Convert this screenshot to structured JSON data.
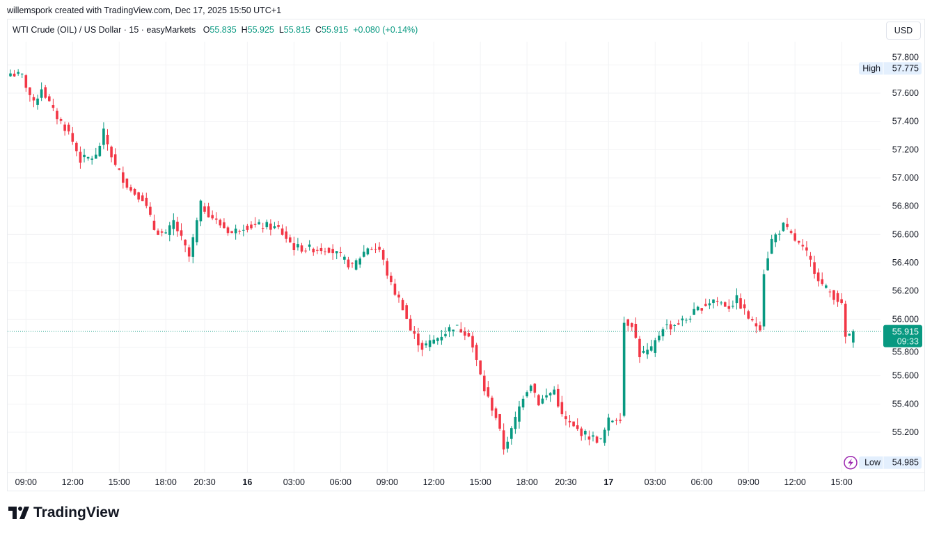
{
  "credit": "willemspork created with TradingView.com, Dec 17, 2025 15:50 UTC+1",
  "legend": {
    "symbol": "WTI Crude (OIL) / US Dollar · 15 · easyMarkets",
    "o_label": "O",
    "o": "55.835",
    "h_label": "H",
    "h": "55.925",
    "l_label": "L",
    "l": "55.815",
    "c_label": "C",
    "c": "55.915",
    "change": "+0.080 (+0.14%)"
  },
  "currency_button": "USD",
  "footer_logo": "TradingView",
  "colors": {
    "up": "#089981",
    "down": "#F23645",
    "grid": "#f2f3f5",
    "marker_bg": "#e3effd",
    "bolt": "#9c27b0"
  },
  "chart_data": {
    "type": "candlestick",
    "title": "WTI Crude (OIL) / US Dollar · 15 · easyMarkets",
    "ylim": [
      54.93,
      57.97
    ],
    "y_ticks": [
      "57.800",
      "57.600",
      "57.400",
      "57.200",
      "57.000",
      "56.800",
      "56.600",
      "56.400",
      "56.200",
      "56.000",
      "55.800",
      "55.600",
      "55.400",
      "55.200"
    ],
    "x_ticks": [
      {
        "label": "09:00",
        "i": 4,
        "bold": false
      },
      {
        "label": "12:00",
        "i": 16,
        "bold": false
      },
      {
        "label": "15:00",
        "i": 28,
        "bold": false
      },
      {
        "label": "18:00",
        "i": 40,
        "bold": false
      },
      {
        "label": "20:30",
        "i": 50,
        "bold": false
      },
      {
        "label": "16",
        "i": 61,
        "bold": true
      },
      {
        "label": "03:00",
        "i": 73,
        "bold": false
      },
      {
        "label": "06:00",
        "i": 85,
        "bold": false
      },
      {
        "label": "09:00",
        "i": 97,
        "bold": false
      },
      {
        "label": "12:00",
        "i": 109,
        "bold": false
      },
      {
        "label": "15:00",
        "i": 121,
        "bold": false
      },
      {
        "label": "18:00",
        "i": 133,
        "bold": false
      },
      {
        "label": "20:30",
        "i": 143,
        "bold": false
      },
      {
        "label": "17",
        "i": 154,
        "bold": true
      },
      {
        "label": "03:00",
        "i": 166,
        "bold": false
      },
      {
        "label": "06:00",
        "i": 178,
        "bold": false
      },
      {
        "label": "09:00",
        "i": 190,
        "bold": false
      },
      {
        "label": "12:00",
        "i": 202,
        "bold": false
      },
      {
        "label": "15:00",
        "i": 214,
        "bold": false
      }
    ],
    "close_path": [
      [
        0,
        57.74
      ],
      [
        3,
        57.72
      ],
      [
        6,
        57.52
      ],
      [
        8,
        57.64
      ],
      [
        11,
        57.47
      ],
      [
        15,
        57.32
      ],
      [
        18,
        57.13
      ],
      [
        22,
        57.15
      ],
      [
        24,
        57.32
      ],
      [
        27,
        57.08
      ],
      [
        31,
        56.91
      ],
      [
        34,
        56.86
      ],
      [
        37,
        56.64
      ],
      [
        40,
        56.59
      ],
      [
        42,
        56.69
      ],
      [
        46,
        56.44
      ],
      [
        49,
        56.81
      ],
      [
        53,
        56.69
      ],
      [
        57,
        56.61
      ],
      [
        60,
        56.66
      ],
      [
        66,
        56.66
      ],
      [
        69,
        56.64
      ],
      [
        73,
        56.51
      ],
      [
        76,
        56.5
      ],
      [
        82,
        56.5
      ],
      [
        85,
        56.44
      ],
      [
        88,
        56.37
      ],
      [
        92,
        56.51
      ],
      [
        95,
        56.49
      ],
      [
        98,
        56.24
      ],
      [
        101,
        56.09
      ],
      [
        103,
        55.92
      ],
      [
        106,
        55.8
      ],
      [
        109,
        55.85
      ],
      [
        114,
        55.95
      ],
      [
        118,
        55.9
      ],
      [
        120,
        55.7
      ],
      [
        122,
        55.5
      ],
      [
        125,
        55.31
      ],
      [
        127,
        55.09
      ],
      [
        129,
        55.21
      ],
      [
        132,
        55.46
      ],
      [
        134,
        55.55
      ],
      [
        136,
        55.41
      ],
      [
        140,
        55.5
      ],
      [
        142,
        55.31
      ],
      [
        145,
        55.23
      ],
      [
        149,
        55.17
      ],
      [
        152,
        55.14
      ],
      [
        154,
        55.28
      ],
      [
        157,
        55.31
      ],
      [
        158,
        55.98
      ],
      [
        160,
        55.97
      ],
      [
        162,
        55.75
      ],
      [
        165,
        55.78
      ],
      [
        168,
        55.95
      ],
      [
        170,
        55.95
      ],
      [
        174,
        56.0
      ],
      [
        178,
        56.09
      ],
      [
        181,
        56.14
      ],
      [
        185,
        56.09
      ],
      [
        187,
        56.14
      ],
      [
        191,
        55.97
      ],
      [
        193,
        55.95
      ],
      [
        194,
        56.34
      ],
      [
        196,
        56.56
      ],
      [
        199,
        56.66
      ],
      [
        202,
        56.56
      ],
      [
        205,
        56.46
      ],
      [
        209,
        56.24
      ],
      [
        213,
        56.14
      ],
      [
        214,
        56.09
      ],
      [
        215,
        55.87
      ],
      [
        217,
        55.915
      ]
    ],
    "high": {
      "label": "High",
      "value": "57.775"
    },
    "low": {
      "label": "Low",
      "value": "54.985"
    },
    "last": {
      "value": "55.915",
      "countdown": "09:33"
    }
  }
}
